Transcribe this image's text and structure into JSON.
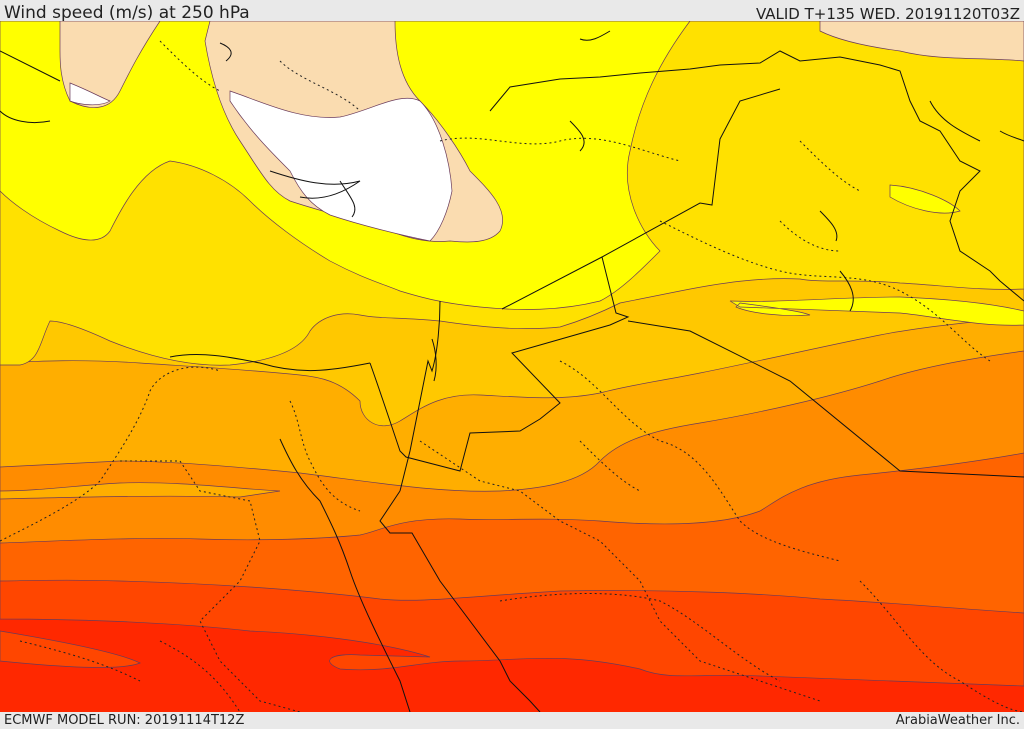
{
  "header": {
    "title": "Wind speed (m/s) at 250 hPa",
    "valid": "VALID T+135 WED. 20191120T03Z"
  },
  "footer": {
    "model_run": "ECMWF MODEL RUN: 20191114T12Z",
    "credit": "ArabiaWeather Inc."
  },
  "palette": {
    "white": "#ffffff",
    "peach": "#fadcb0",
    "light_yellow": "#ffff00",
    "yellow": "#ffe100",
    "gold": "#ffc800",
    "amber": "#ffae00",
    "orange": "#ff8c00",
    "dark_orange": "#ff6400",
    "orange_red": "#ff4600",
    "red": "#ff2800"
  },
  "map_layers": [
    {
      "name": "wind-band-white",
      "color": "white"
    },
    {
      "name": "wind-band-peach",
      "color": "peach"
    },
    {
      "name": "wind-band-light-yellow",
      "color": "light_yellow"
    },
    {
      "name": "wind-band-yellow",
      "color": "yellow"
    },
    {
      "name": "wind-band-gold",
      "color": "gold"
    },
    {
      "name": "wind-band-amber",
      "color": "amber"
    },
    {
      "name": "wind-band-orange",
      "color": "orange"
    },
    {
      "name": "wind-band-dark-orange",
      "color": "dark_orange"
    },
    {
      "name": "wind-band-orange-red",
      "color": "orange_red"
    },
    {
      "name": "wind-band-red",
      "color": "red"
    }
  ]
}
